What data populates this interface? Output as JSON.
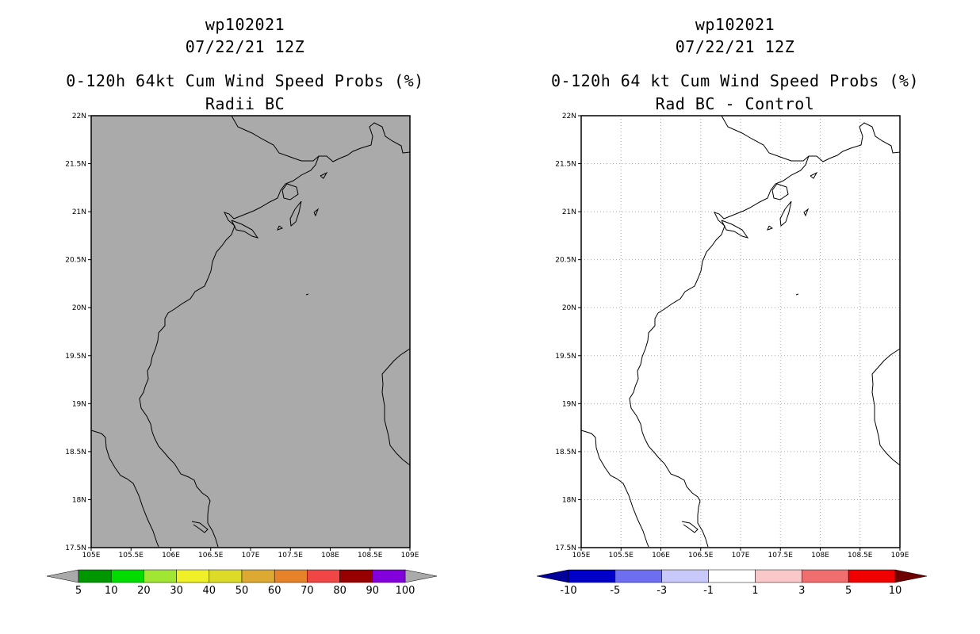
{
  "panels": {
    "left": {
      "title_storm": "wp102021",
      "title_date": "07/22/21 12Z",
      "title_product": "0-120h 64kt Cum Wind Speed Probs (%)",
      "title_sub": "Radii BC",
      "map_fill_color": "#aaaaaa",
      "lat_labels": [
        "22N",
        "21.5N",
        "21N",
        "20.5N",
        "20N",
        "19.5N",
        "19N",
        "18.5N",
        "18N",
        "17.5N"
      ],
      "lon_labels": [
        "105E",
        "105.5E",
        "106E",
        "106.5E",
        "107E",
        "107.5E",
        "108E",
        "108.5E",
        "109E"
      ],
      "colorbar": {
        "labels": [
          "5",
          "10",
          "20",
          "30",
          "40",
          "50",
          "60",
          "70",
          "80",
          "90",
          "100"
        ],
        "colors": [
          "#009600",
          "#00dc00",
          "#a0e632",
          "#f0f028",
          "#dcdc28",
          "#dcaa32",
          "#e6822a",
          "#f04646",
          "#960000",
          "#8200dc"
        ],
        "end_color": "#aaaaaa"
      }
    },
    "right": {
      "title_storm": "wp102021",
      "title_date": "07/22/21 12Z",
      "title_product": "0-120h 64 kt Cum Wind Speed Probs (%)",
      "title_sub": "Rad BC - Control",
      "map_fill_color": "#ffffff",
      "lat_labels": [
        "22N",
        "21.5N",
        "21N",
        "20.5N",
        "20N",
        "19.5N",
        "19N",
        "18.5N",
        "18N",
        "17.5N"
      ],
      "lon_labels": [
        "105E",
        "105.5E",
        "106E",
        "106.5E",
        "107E",
        "107.5E",
        "108E",
        "108.5E",
        "109E"
      ],
      "colorbar": {
        "labels": [
          "-10",
          "-5",
          "-3",
          "-1",
          "1",
          "3",
          "5",
          "10"
        ],
        "colors": [
          "#0000c8",
          "#6e6ef0",
          "#c8c8fa",
          "#ffffff",
          "#fac8c8",
          "#f06e6e",
          "#f00000"
        ],
        "end_left_color": "#00009b",
        "end_right_color": "#6e0000"
      }
    }
  }
}
